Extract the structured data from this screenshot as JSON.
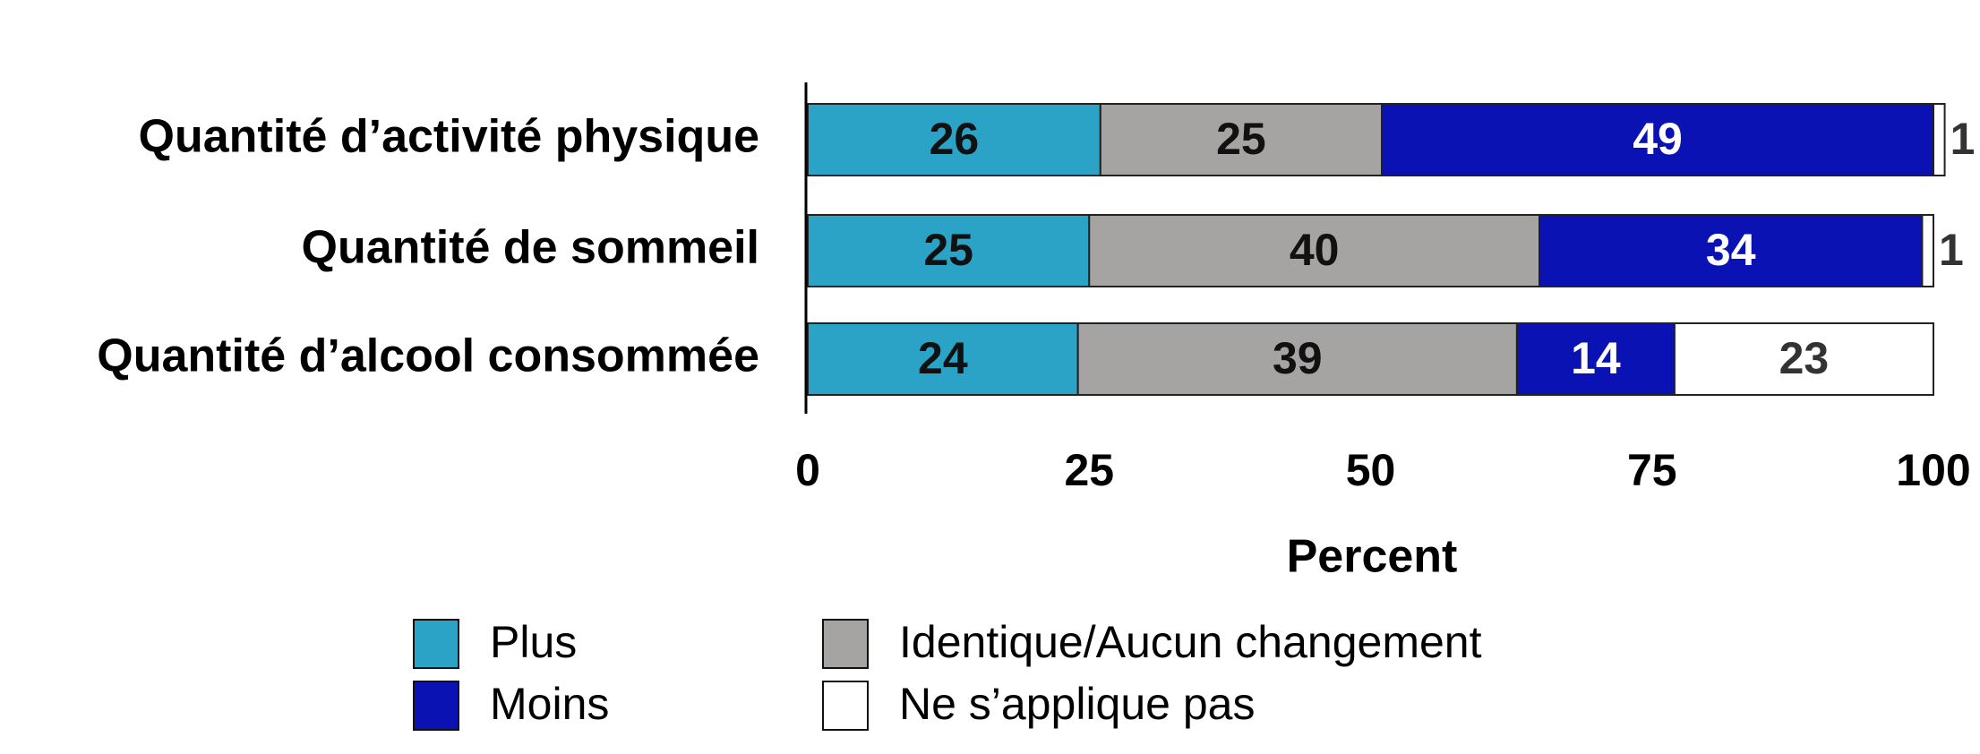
{
  "chart_data": {
    "type": "stacked-barh",
    "categories": [
      "Quantité d’activité physique",
      "Quantité de sommeil",
      "Quantité d’alcool consommée"
    ],
    "series": [
      {
        "name": "Plus",
        "color": "#2aa3c6",
        "values": [
          26,
          25,
          24
        ]
      },
      {
        "name": "Identique/Aucun changement",
        "color": "#a6a3a3",
        "values": [
          25,
          40,
          39
        ]
      },
      {
        "name": "Moins",
        "color": "#0a12b4",
        "values": [
          49,
          34,
          14
        ]
      },
      {
        "name": "Ne s’applique pas",
        "color": "#ffffff",
        "values": [
          1,
          1,
          23
        ]
      }
    ],
    "xlabel": "Percent",
    "xlim": [
      0,
      100
    ],
    "xticks": [
      0,
      25,
      50,
      75,
      100
    ]
  }
}
